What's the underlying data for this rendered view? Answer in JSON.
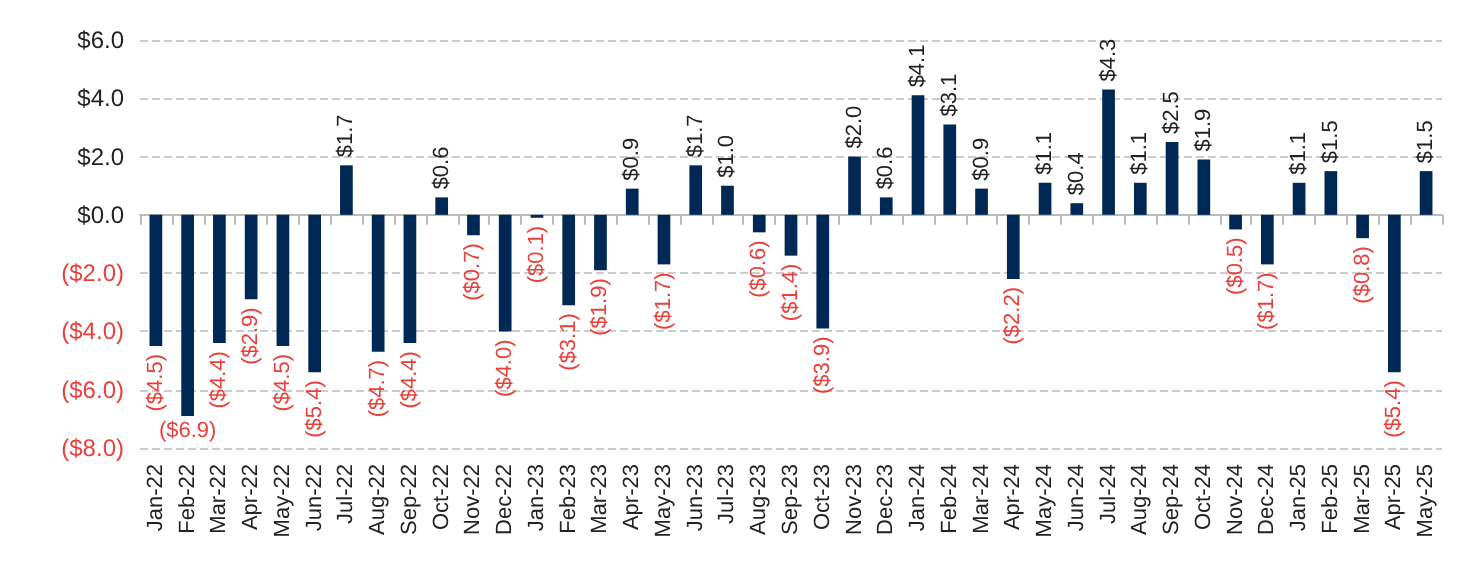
{
  "chart_data": {
    "type": "bar",
    "categories": [
      "Jan-22",
      "Feb-22",
      "Mar-22",
      "Apr-22",
      "May-22",
      "Jun-22",
      "Jul-22",
      "Aug-22",
      "Sep-22",
      "Oct-22",
      "Nov-22",
      "Dec-22",
      "Jan-23",
      "Feb-23",
      "Mar-23",
      "Apr-23",
      "May-23",
      "Jun-23",
      "Jul-23",
      "Aug-23",
      "Sep-23",
      "Oct-23",
      "Nov-23",
      "Dec-23",
      "Jan-24",
      "Feb-24",
      "Mar-24",
      "Apr-24",
      "May-24",
      "Jun-24",
      "Jul-24",
      "Aug-24",
      "Sep-24",
      "Oct-24",
      "Nov-24",
      "Dec-24",
      "Jan-25",
      "Feb-25",
      "Mar-25",
      "Apr-25",
      "May-25"
    ],
    "values": [
      -4.5,
      -6.9,
      -4.4,
      -2.9,
      -4.5,
      -5.4,
      1.7,
      -4.7,
      -4.4,
      0.6,
      -0.7,
      -4.0,
      -0.1,
      -3.1,
      -1.9,
      0.9,
      -1.7,
      1.7,
      1.0,
      -0.6,
      -1.4,
      -3.9,
      2.0,
      0.6,
      4.1,
      3.1,
      0.9,
      -2.2,
      1.1,
      0.4,
      4.3,
      1.1,
      2.5,
      1.9,
      -0.5,
      -1.7,
      1.1,
      1.5,
      -0.8,
      -5.4,
      1.5
    ],
    "value_labels": [
      "($4.5)",
      "($6.9)",
      "($4.4)",
      "($2.9)",
      "($4.5)",
      "($5.4)",
      "$1.7",
      "($4.7)",
      "($4.4)",
      "$0.6",
      "($0.7)",
      "($4.0)",
      "($0.1)",
      "($3.1)",
      "($1.9)",
      "$0.9",
      "($1.7)",
      "$1.7",
      "$1.0",
      "($0.6)",
      "($1.4)",
      "($3.9)",
      "$2.0",
      "$0.6",
      "$4.1",
      "$3.1",
      "$0.9",
      "($2.2)",
      "$1.1",
      "$0.4",
      "$4.3",
      "$1.1",
      "$2.5",
      "$1.9",
      "($0.5)",
      "($1.7)",
      "$1.1",
      "$1.5",
      "($0.8)",
      "($5.4)",
      "$1.5"
    ],
    "color": "#002855",
    "ylim": [
      -8,
      6
    ],
    "yticks": [
      {
        "value": -8,
        "label": "($8.0)"
      },
      {
        "value": -6,
        "label": "($6.0)"
      },
      {
        "value": -4,
        "label": "($4.0)"
      },
      {
        "value": -2,
        "label": "($2.0)"
      },
      {
        "value": 0,
        "label": "$0.0"
      },
      {
        "value": 2,
        "label": "$2.0"
      },
      {
        "value": 4,
        "label": "$4.0"
      },
      {
        "value": 6,
        "label": "$6.0"
      }
    ],
    "grid": "y"
  }
}
